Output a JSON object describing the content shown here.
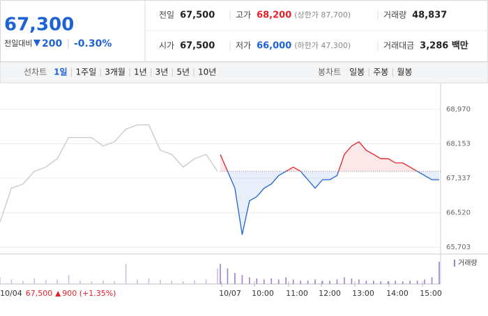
{
  "header": {
    "price": "67,300",
    "change_label": "전일대비",
    "change": "200",
    "change_rate": "-0.30%"
  },
  "info": {
    "rows": [
      [
        {
          "label": "전일",
          "value": "67,500"
        },
        {
          "label": "고가",
          "value": "68,200",
          "note": "(상한가 87,700)"
        },
        {
          "label": "거래량",
          "value": "48,837"
        }
      ],
      [
        {
          "label": "시가",
          "value": "67,500"
        },
        {
          "label": "저가",
          "value": "66,000",
          "note": "(하한가 47,300)"
        },
        {
          "label": "거래대금",
          "value": "3,286 백만"
        }
      ]
    ]
  },
  "tabs": {
    "line_label": "선차트",
    "line_periods": [
      "1일",
      "1주일",
      "3개월",
      "1년",
      "3년",
      "5년",
      "10년"
    ],
    "candle_label": "봉차트",
    "candle_periods": [
      "일봉",
      "주봉",
      "월봉"
    ]
  },
  "chart_data": {
    "type": "line",
    "ylim": [
      65540,
      69250
    ],
    "yticks": [
      {
        "value": 68970,
        "label": "68,970"
      },
      {
        "value": 68153,
        "label": "68,153"
      },
      {
        "value": 67337,
        "label": "67,337"
      },
      {
        "value": 66520,
        "label": "66,520"
      },
      {
        "value": 65703,
        "label": "65,703"
      }
    ],
    "base": 67500,
    "grid": true,
    "x_labels": [
      "10/07",
      "10:00",
      "11:00",
      "12:00",
      "13:00",
      "14:00",
      "15:00"
    ],
    "volume_label": "거래량",
    "prev": {
      "date": "10/04",
      "close": "67,500",
      "change": "900 (+1.35%)"
    },
    "series": [
      {
        "color": "#c8c8c8",
        "volume_color": "#c9bfe0",
        "values": [
          66300,
          67100,
          67200,
          67500,
          67600,
          67800,
          68300,
          68300,
          68300,
          68100,
          68200,
          68500,
          68600,
          68600,
          68000,
          67900,
          67600,
          67800,
          67900,
          67500
        ],
        "volume": [
          300,
          200,
          150,
          250,
          180,
          200,
          400,
          150,
          120,
          160,
          140,
          900,
          200,
          250,
          180,
          150,
          120,
          170,
          200,
          700
        ]
      },
      {
        "up_color": "#e4202a",
        "down_color": "#1e63d3",
        "volume_color": "#9b7fd0",
        "values": [
          67900,
          67500,
          67100,
          66000,
          66800,
          66900,
          67100,
          67200,
          67400,
          67500,
          67600,
          67500,
          67300,
          67100,
          67300,
          67300,
          67400,
          67900,
          68100,
          68200,
          68000,
          67900,
          67800,
          67800,
          67700,
          67700,
          67600,
          67500,
          67400,
          67300,
          67300
        ],
        "volume": [
          900,
          700,
          500,
          400,
          300,
          250,
          200,
          250,
          200,
          300,
          200,
          150,
          150,
          200,
          150,
          150,
          200,
          300,
          250,
          200,
          150,
          150,
          120,
          120,
          150,
          120,
          150,
          150,
          200,
          300,
          1000
        ]
      }
    ]
  }
}
